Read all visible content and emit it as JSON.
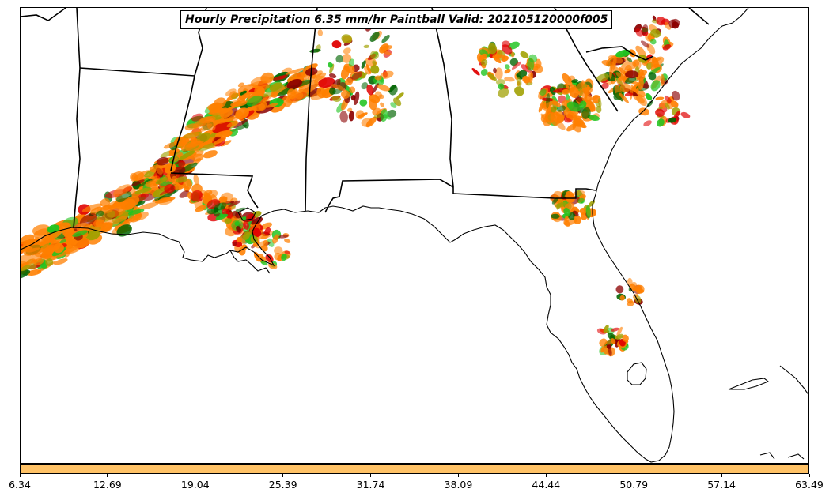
{
  "title": "Hourly Precipitation 6.35 mm/hr Paintball Valid: 202105120000f005",
  "colorbar": {
    "color": "#ffc266",
    "ticks": [
      "6.34",
      "12.69",
      "19.04",
      "25.39",
      "31.74",
      "38.09",
      "44.44",
      "50.79",
      "57.14",
      "63.49"
    ]
  },
  "colors": {
    "ensemble_members": [
      "#ff7f00",
      "#e00000",
      "#1fc41f",
      "#006400",
      "#8b0000",
      "#a0a000"
    ],
    "coastline": "#000000",
    "state_borders": "#000000"
  },
  "map": {
    "region": "Southeastern United States",
    "projection": "Lambert Conformal"
  }
}
